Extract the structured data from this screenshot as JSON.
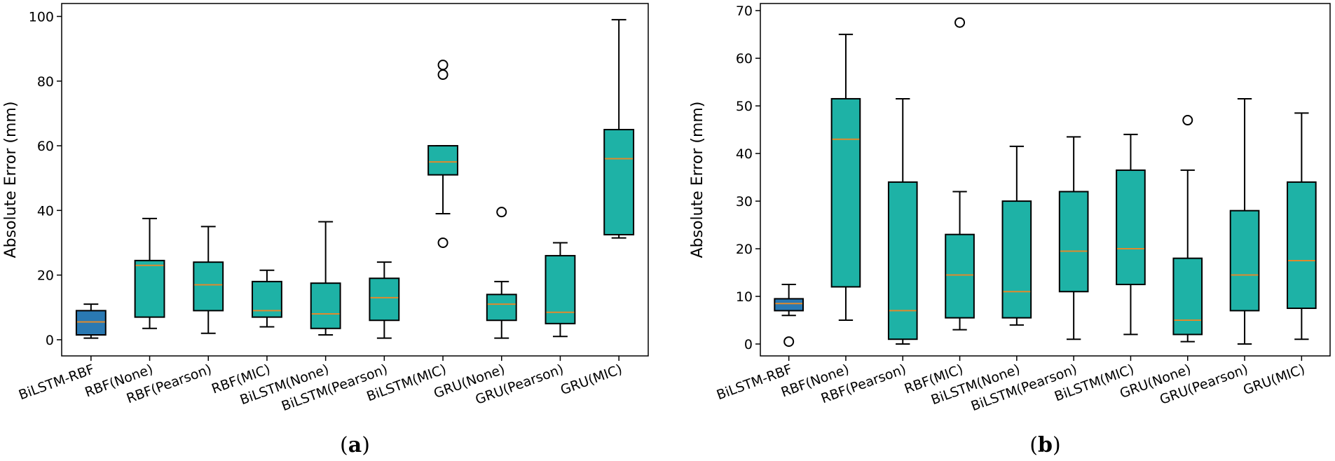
{
  "colors": {
    "box_highlight": "#2a79b3",
    "box_default": "#1eb2a6",
    "median": "#e08a2c",
    "stroke": "#000000"
  },
  "chart_data": [
    {
      "id": "a",
      "type": "boxplot",
      "panel_label": {
        "open": "(",
        "letter": "a",
        "close": ")"
      },
      "ylabel": "Absolute Error (mm)",
      "ylim": [
        -5,
        104
      ],
      "yticks": [
        0,
        20,
        40,
        60,
        80,
        100
      ],
      "categories": [
        "BiLSTM-RBF",
        "RBF(None)",
        "RBF(Pearson)",
        "RBF(MIC)",
        "BiLSTM(None)",
        "BiLSTM(Pearson)",
        "BiLSTM(MIC)",
        "GRU(None)",
        "GRU(Pearson)",
        "GRU(MIC)"
      ],
      "boxes": [
        {
          "whislo": 0.5,
          "q1": 1.5,
          "med": 5.5,
          "q3": 9,
          "whishi": 11,
          "fliers": []
        },
        {
          "whislo": 3.5,
          "q1": 7,
          "med": 23,
          "q3": 24.5,
          "whishi": 37.5,
          "fliers": []
        },
        {
          "whislo": 2,
          "q1": 9,
          "med": 17,
          "q3": 24,
          "whishi": 35,
          "fliers": []
        },
        {
          "whislo": 4,
          "q1": 7,
          "med": 9,
          "q3": 18,
          "whishi": 21.5,
          "fliers": []
        },
        {
          "whislo": 1.5,
          "q1": 3.5,
          "med": 8,
          "q3": 17.5,
          "whishi": 36.5,
          "fliers": []
        },
        {
          "whislo": 0.5,
          "q1": 6,
          "med": 13,
          "q3": 19,
          "whishi": 24,
          "fliers": []
        },
        {
          "whislo": 39,
          "q1": 51,
          "med": 55,
          "q3": 60,
          "whishi": 60,
          "fliers": [
            30,
            82,
            85
          ]
        },
        {
          "whislo": 0.5,
          "q1": 6,
          "med": 11,
          "q3": 14,
          "whishi": 18,
          "fliers": [
            39.5
          ]
        },
        {
          "whislo": 1,
          "q1": 5,
          "med": 8.5,
          "q3": 26,
          "whishi": 30,
          "fliers": []
        },
        {
          "whislo": 31.5,
          "q1": 32.5,
          "med": 56,
          "q3": 65,
          "whishi": 99,
          "fliers": []
        }
      ]
    },
    {
      "id": "b",
      "type": "boxplot",
      "panel_label": {
        "open": "(",
        "letter": "b",
        "close": ")"
      },
      "ylabel": "Absolute Error (mm)",
      "ylim": [
        -2.5,
        71.5
      ],
      "yticks": [
        0,
        10,
        20,
        30,
        40,
        50,
        60,
        70
      ],
      "categories": [
        "BiLSTM-RBF",
        "RBF(None)",
        "RBF(Pearson)",
        "RBF(MIC)",
        "BiLSTM(None)",
        "BiLSTM(Pearson)",
        "BiLSTM(MIC)",
        "GRU(None)",
        "GRU(Pearson)",
        "GRU(MIC)"
      ],
      "boxes": [
        {
          "whislo": 6,
          "q1": 7,
          "med": 8.5,
          "q3": 9.5,
          "whishi": 12.5,
          "fliers": [
            0.5
          ]
        },
        {
          "whislo": 5,
          "q1": 12,
          "med": 43,
          "q3": 51.5,
          "whishi": 65,
          "fliers": []
        },
        {
          "whislo": 0,
          "q1": 1,
          "med": 7,
          "q3": 34,
          "whishi": 51.5,
          "fliers": []
        },
        {
          "whislo": 3,
          "q1": 5.5,
          "med": 14.5,
          "q3": 23,
          "whishi": 32,
          "fliers": [
            67.5
          ]
        },
        {
          "whislo": 4,
          "q1": 5.5,
          "med": 11,
          "q3": 30,
          "whishi": 41.5,
          "fliers": []
        },
        {
          "whislo": 1,
          "q1": 11,
          "med": 19.5,
          "q3": 32,
          "whishi": 43.5,
          "fliers": []
        },
        {
          "whislo": 2,
          "q1": 12.5,
          "med": 20,
          "q3": 36.5,
          "whishi": 44,
          "fliers": []
        },
        {
          "whislo": 0.5,
          "q1": 2,
          "med": 5,
          "q3": 18,
          "whishi": 36.5,
          "fliers": [
            47
          ]
        },
        {
          "whislo": 0,
          "q1": 7,
          "med": 14.5,
          "q3": 28,
          "whishi": 51.5,
          "fliers": []
        },
        {
          "whislo": 1,
          "q1": 7.5,
          "med": 17.5,
          "q3": 34,
          "whishi": 48.5,
          "fliers": []
        }
      ]
    }
  ]
}
